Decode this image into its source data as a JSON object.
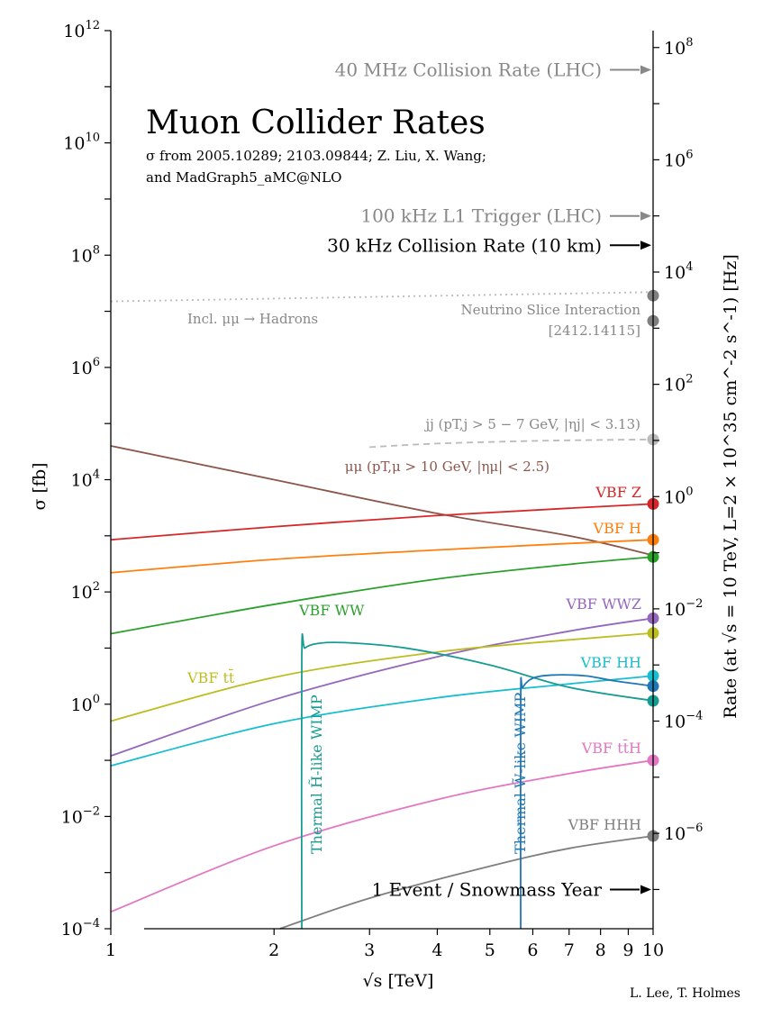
{
  "chart_data": {
    "type": "line",
    "title": "Muon Collider Rates",
    "subtitle_lines": [
      "σ from 2005.10289; 2103.09844; Z. Liu, X. Wang;",
      "and MadGraph5_aMC@NLO"
    ],
    "xlabel": "√s [TeV]",
    "ylabel_left": "σ [fb]",
    "ylabel_right": "Rate (at √s = 10 TeV, L=2 × 10^35 cm^-2 s^-1) [Hz]",
    "xscale": "log",
    "yscale": "log",
    "xlim": [
      1,
      10
    ],
    "ylim": [
      0.0001,
      1000000000000
    ],
    "x_ticks": [
      {
        "value": 1,
        "label": "1"
      },
      {
        "value": 2,
        "label": "2"
      },
      {
        "value": 3,
        "label": "3"
      },
      {
        "value": 4,
        "label": "4"
      },
      {
        "value": 5,
        "label": "5"
      },
      {
        "value": 6,
        "label": "6"
      },
      {
        "value": 7,
        "label": "7"
      },
      {
        "value": 8,
        "label": "8"
      },
      {
        "value": 9,
        "label": "9"
      },
      {
        "value": 10,
        "label": "10"
      }
    ],
    "y_ticks_left": [
      {
        "exp": -4,
        "base": "10",
        "sup": "−4"
      },
      {
        "exp": -2,
        "base": "10",
        "sup": "−2"
      },
      {
        "exp": 0,
        "base": "10",
        "sup": "0"
      },
      {
        "exp": 2,
        "base": "10",
        "sup": "2"
      },
      {
        "exp": 4,
        "base": "10",
        "sup": "4"
      },
      {
        "exp": 6,
        "base": "10",
        "sup": "6"
      },
      {
        "exp": 8,
        "base": "10",
        "sup": "8"
      },
      {
        "exp": 10,
        "base": "10",
        "sup": "10"
      },
      {
        "exp": 12,
        "base": "10",
        "sup": "12"
      }
    ],
    "y_ticks_right": [
      {
        "exp": -6,
        "base": "10",
        "sup": "−6"
      },
      {
        "exp": -4,
        "base": "10",
        "sup": "−4"
      },
      {
        "exp": -2,
        "base": "10",
        "sup": "−2"
      },
      {
        "exp": 0,
        "base": "10",
        "sup": "0"
      },
      {
        "exp": 2,
        "base": "10",
        "sup": "2"
      },
      {
        "exp": 4,
        "base": "10",
        "sup": "4"
      },
      {
        "exp": 6,
        "base": "10",
        "sup": "6"
      },
      {
        "exp": 8,
        "base": "10",
        "sup": "8"
      }
    ],
    "rate_conversion_hz_per_fb": 0.0002,
    "series": [
      {
        "name": "Incl. μμ → Hadrons",
        "color": "#bbbbbb",
        "dash": "2,4",
        "x": [
          1,
          10
        ],
        "y": [
          15000000,
          22000000
        ],
        "end_marker": false
      },
      {
        "name": "jj (p_T,j > 5 − 7 GeV, |η_j| < 3.13)",
        "color": "#bbbbbb",
        "dash": "7,5",
        "x": [
          3,
          4,
          6,
          8,
          10
        ],
        "y": [
          38000,
          44000,
          49000,
          51000,
          52000
        ],
        "end_marker": true
      },
      {
        "name": "μμ (p_T,μ > 10 GeV, |η_μ| < 2.5)",
        "color": "#8c564b",
        "x": [
          1,
          2,
          4,
          7,
          10
        ],
        "y": [
          40000,
          10000,
          2500,
          1000,
          450
        ],
        "end_marker": false
      },
      {
        "name": "VBF Z",
        "color": "#d62728",
        "x": [
          1,
          2,
          4,
          7,
          10
        ],
        "y": [
          850,
          1450,
          2300,
          3100,
          3700
        ],
        "end_marker": true
      },
      {
        "name": "VBF H",
        "color": "#ff7f0e",
        "x": [
          1,
          2,
          4,
          7,
          10
        ],
        "y": [
          220,
          380,
          560,
          730,
          850
        ],
        "end_marker": true
      },
      {
        "name": "VBF WW",
        "color": "#2ca02c",
        "x": [
          1,
          2,
          4,
          7,
          10
        ],
        "y": [
          18,
          60,
          170,
          310,
          420
        ],
        "end_marker": true
      },
      {
        "name": "VBF WWZ",
        "color": "#9467bd",
        "x": [
          1,
          2,
          4,
          7,
          10
        ],
        "y": [
          0.12,
          1.2,
          7,
          20,
          34
        ],
        "end_marker": true
      },
      {
        "name": "VBF tt̄",
        "color": "#bcbd22",
        "x": [
          1,
          2,
          4,
          7,
          10
        ],
        "y": [
          0.5,
          3,
          8.5,
          14,
          18.5
        ],
        "end_marker": true
      },
      {
        "name": "VBF HH",
        "color": "#17becf",
        "x": [
          1,
          2,
          4,
          7,
          10
        ],
        "y": [
          0.08,
          0.45,
          1.3,
          2.3,
          3.2
        ],
        "end_marker": true
      },
      {
        "name": "VBF tt̄H",
        "color": "#e377c2",
        "x": [
          1,
          2,
          4,
          7,
          10
        ],
        "y": [
          0.0002,
          0.003,
          0.02,
          0.058,
          0.1
        ],
        "end_marker": true
      },
      {
        "name": "VBF HHH",
        "color": "#7f7f7f",
        "x": [
          2.05,
          3,
          5,
          7,
          10
        ],
        "y": [
          0.0001,
          0.00035,
          0.0013,
          0.0027,
          0.0045
        ],
        "end_marker": true
      },
      {
        "name": "Thermal H̃-like WIMP",
        "color": "#179c93",
        "x": [
          2.25,
          2.25,
          2.28,
          2.4,
          2.7,
          3.5,
          5,
          7,
          10
        ],
        "y": [
          0.0001,
          7,
          10,
          12,
          12.5,
          10,
          5,
          2,
          1.15
        ],
        "end_marker": true
      },
      {
        "name": "Thermal W̃-like WIMP",
        "color": "#1f77b4",
        "x": [
          5.7,
          5.7,
          5.75,
          6,
          6.5,
          7.5,
          8.5,
          10
        ],
        "y": [
          0.0001,
          1.3,
          2,
          2.9,
          3.3,
          3.2,
          2.6,
          2.1
        ],
        "end_marker": true
      }
    ],
    "series_labels": [
      {
        "series": 2,
        "text": "μμ (p",
        "sub": "T,μ",
        "tail": " > 10 GeV, |η",
        "sub2": "μ",
        "tail2": "| < 2.5)"
      },
      {
        "series": 1,
        "text": "jj (p",
        "sub": "T,j",
        "tail": " > 5 − 7 GeV, |η",
        "sub2": "j",
        "tail2": "| < 3.13)"
      }
    ],
    "labels": {
      "incl_hadrons": "Incl. μμ → Hadrons",
      "neutrino_line1": "Neutrino Slice Interaction",
      "neutrino_line2": "[2412.14115]",
      "mumu_label": "μμ (pT,μ > 10 GeV, |ημ| < 2.5)",
      "jj_label": "jj (pT,j > 5 − 7 GeV, |ηj| < 3.13)",
      "vbf_z": "VBF Z",
      "vbf_h": "VBF H",
      "vbf_ww": "VBF WW",
      "vbf_wwz": "VBF WWZ",
      "vbf_tt": "VBF tt̄",
      "vbf_hh": "VBF HH",
      "vbf_tth": "VBF tt̄H",
      "vbf_hhh": "VBF HHH",
      "wimp_h": "Thermal H̃-like WIMP",
      "wimp_w": "Thermal W̃-like WIMP"
    },
    "rate_annotations": [
      {
        "text": "40 MHz Collision Rate (LHC)",
        "rate_hz": 40000000,
        "color": "#888888"
      },
      {
        "text": "100 kHz L1 Trigger (LHC)",
        "rate_hz": 100000,
        "color": "#888888"
      },
      {
        "text": "30 kHz Collision Rate (10 km)",
        "rate_hz": 30000,
        "color": "#000000"
      },
      {
        "text": "1 Event / Snowmass Year",
        "rate_hz": 1e-07,
        "color": "#000000"
      }
    ],
    "endpoint_markers": [
      {
        "name": "Neutrino Slice Interaction",
        "rate_hz": 3800,
        "color": "#7f7f7f"
      },
      {
        "name": "Neutrino Slice Interaction 2",
        "rate_hz": 1350,
        "color": "#7f7f7f"
      }
    ],
    "credit": "L. Lee, T. Holmes"
  }
}
